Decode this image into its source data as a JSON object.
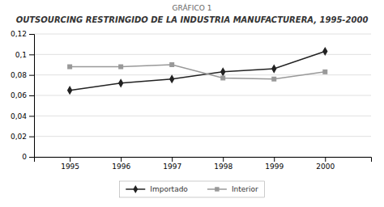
{
  "chart_data": {
    "type": "line",
    "subtitle": "GRÁFICO 1",
    "title": "OUTSOURCING RESTRINGIDO DE LA INDUSTRIA MANUFACTURERA, 1995-2000",
    "x": [
      1995,
      1996,
      1997,
      1998,
      1999,
      2000
    ],
    "series": [
      {
        "name": "Importado",
        "color": "#222222",
        "marker": "diamond",
        "values": [
          0.065,
          0.072,
          0.076,
          0.083,
          0.086,
          0.103
        ]
      },
      {
        "name": "Interior",
        "color": "#999999",
        "marker": "square",
        "values": [
          0.088,
          0.088,
          0.09,
          0.077,
          0.076,
          0.083
        ]
      }
    ],
    "xlim": [
      1994.3,
      2000.9
    ],
    "xticks": [
      1995,
      1996,
      1997,
      1998,
      1999,
      2000
    ],
    "ylim": [
      0,
      0.12
    ],
    "yticks": [
      0,
      {
        "value": 0.02,
        "label": "0,02"
      },
      {
        "value": 0.04,
        "label": "0,04"
      },
      {
        "value": 0.06,
        "label": "0,06"
      },
      {
        "value": 0.08,
        "label": "0,08"
      },
      {
        "value": 0.1,
        "label": "0,1"
      },
      {
        "value": 0.12,
        "label": "0,12"
      }
    ],
    "grid": true,
    "legend": "bottom"
  }
}
